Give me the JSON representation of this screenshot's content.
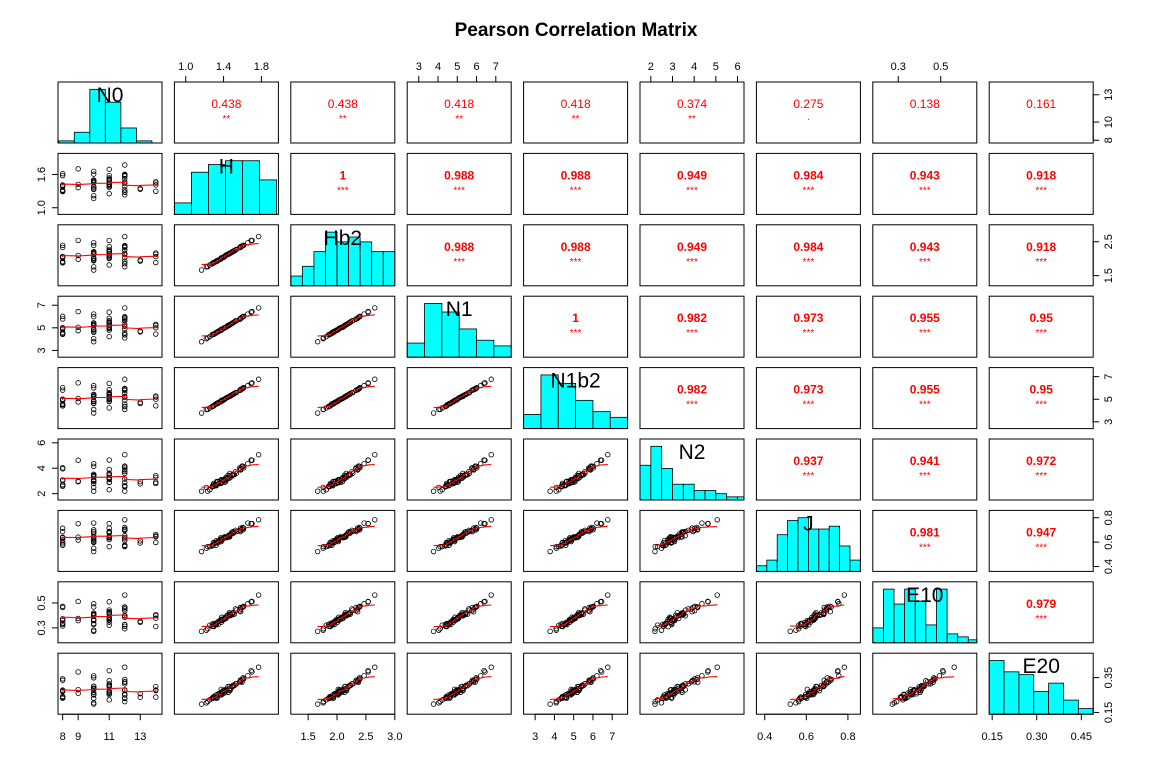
{
  "chart_data": {
    "type": "scatter-matrix",
    "title": "Pearson Correlation Matrix",
    "colors": {
      "hist": "#00ffff",
      "smooth": "#ff0000",
      "points": "#000000",
      "text": "#ff0000"
    },
    "variables": [
      "N0",
      "H",
      "Hb2",
      "N1",
      "N1b2",
      "N2",
      "J",
      "E10",
      "E20"
    ],
    "ranges": [
      [
        7.7,
        14.4
      ],
      [
        0.88,
        1.98
      ],
      [
        1.2,
        3.0
      ],
      [
        2.4,
        7.8
      ],
      [
        2.4,
        7.8
      ],
      [
        1.5,
        6.3
      ],
      [
        0.36,
        0.86
      ],
      [
        0.18,
        0.67
      ],
      [
        0.14,
        0.49
      ]
    ],
    "axis_ticks": {
      "top": [
        {
          "var": 1,
          "ticks": [
            1.0,
            1.4,
            1.8
          ],
          "labels": [
            "1.0",
            "1.4",
            "1.8"
          ]
        },
        {
          "var": 3,
          "ticks": [
            3,
            4,
            5,
            6,
            7
          ],
          "labels": [
            "3",
            "4",
            "5",
            "6",
            "7"
          ]
        },
        {
          "var": 5,
          "ticks": [
            2,
            3,
            4,
            5,
            6
          ],
          "labels": [
            "2",
            "3",
            "4",
            "5",
            "6"
          ]
        },
        {
          "var": 7,
          "ticks": [
            0.3,
            0.5
          ],
          "labels": [
            "0.3",
            "0.5"
          ]
        }
      ],
      "bottom": [
        {
          "var": 0,
          "ticks": [
            8,
            9,
            11,
            13
          ],
          "labels": [
            "8",
            "9",
            "11",
            "13"
          ]
        },
        {
          "var": 2,
          "ticks": [
            1.5,
            2.0,
            2.5,
            3.0
          ],
          "labels": [
            "1.5",
            "2.0",
            "2.5",
            "3.0"
          ]
        },
        {
          "var": 4,
          "ticks": [
            3,
            4,
            5,
            6,
            7
          ],
          "labels": [
            "3",
            "4",
            "5",
            "6",
            "7"
          ]
        },
        {
          "var": 6,
          "ticks": [
            0.4,
            0.6,
            0.8
          ],
          "labels": [
            "0.4",
            "0.6",
            "0.8"
          ]
        },
        {
          "var": 8,
          "ticks": [
            0.15,
            0.3,
            0.45
          ],
          "labels": [
            "0.15",
            "0.30",
            "0.45"
          ]
        }
      ],
      "left": [
        {
          "var": 1,
          "ticks": [
            1.0,
            1.6
          ],
          "labels": [
            "1.0",
            "1.6"
          ]
        },
        {
          "var": 3,
          "ticks": [
            3,
            5,
            7
          ],
          "labels": [
            "3",
            "5",
            "7"
          ]
        },
        {
          "var": 5,
          "ticks": [
            2,
            4,
            6
          ],
          "labels": [
            "2",
            "4",
            "6"
          ]
        },
        {
          "var": 7,
          "ticks": [
            0.3,
            0.5
          ],
          "labels": [
            "0.3",
            "0.5"
          ]
        }
      ],
      "right": [
        {
          "var": 0,
          "ticks": [
            8,
            10,
            13
          ],
          "labels": [
            "8",
            "10",
            "13"
          ]
        },
        {
          "var": 2,
          "ticks": [
            1.5,
            2.5
          ],
          "labels": [
            "1.5",
            "2.5"
          ]
        },
        {
          "var": 4,
          "ticks": [
            3,
            5,
            7
          ],
          "labels": [
            "3",
            "5",
            "7"
          ]
        },
        {
          "var": 6,
          "ticks": [
            0.4,
            0.6,
            0.8
          ],
          "labels": [
            "0.4",
            "0.6",
            "0.8"
          ]
        },
        {
          "var": 8,
          "ticks": [
            0.15,
            0.35
          ],
          "labels": [
            "0.15",
            "0.35"
          ]
        }
      ]
    },
    "correlations": [
      [
        "",
        "0.438",
        "0.438",
        "0.418",
        "0.418",
        "0.374",
        "0.275",
        "0.138",
        "0.161"
      ],
      [
        "",
        "",
        "1",
        "0.988",
        "0.988",
        "0.949",
        "0.984",
        "0.943",
        "0.918"
      ],
      [
        "",
        "",
        "",
        "0.988",
        "0.988",
        "0.949",
        "0.984",
        "0.943",
        "0.918"
      ],
      [
        "",
        "",
        "",
        "",
        "1",
        "0.982",
        "0.973",
        "0.955",
        "0.95"
      ],
      [
        "",
        "",
        "",
        "",
        "",
        "0.982",
        "0.973",
        "0.955",
        "0.95"
      ],
      [
        "",
        "",
        "",
        "",
        "",
        "",
        "0.937",
        "0.941",
        "0.972"
      ],
      [
        "",
        "",
        "",
        "",
        "",
        "",
        "",
        "0.981",
        "0.947"
      ],
      [
        "",
        "",
        "",
        "",
        "",
        "",
        "",
        "",
        "0.979"
      ],
      [
        "",
        "",
        "",
        "",
        "",
        "",
        "",
        "",
        ""
      ]
    ],
    "significance": [
      [
        "",
        "**",
        "**",
        "**",
        "**",
        "**",
        ".",
        "",
        ""
      ],
      [
        "",
        "",
        "***",
        "***",
        "***",
        "***",
        "***",
        "***",
        "***"
      ],
      [
        "",
        "",
        "",
        "***",
        "***",
        "***",
        "***",
        "***",
        "***"
      ],
      [
        "",
        "",
        "",
        "",
        "***",
        "***",
        "***",
        "***",
        "***"
      ],
      [
        "",
        "",
        "",
        "",
        "",
        "***",
        "***",
        "***",
        "***"
      ],
      [
        "",
        "",
        "",
        "",
        "",
        "",
        "***",
        "***",
        "***"
      ],
      [
        "",
        "",
        "",
        "",
        "",
        "",
        "",
        "***",
        "***"
      ],
      [
        "",
        "",
        "",
        "",
        "",
        "",
        "",
        "",
        "***"
      ],
      [
        "",
        "",
        "",
        "",
        "",
        "",
        "",
        "",
        ""
      ]
    ],
    "histograms": [
      {
        "var": "N0",
        "breaks": [
          7.75,
          8.75,
          9.75,
          10.75,
          11.75,
          12.75,
          13.75,
          14.4
        ],
        "counts": [
          1,
          5,
          25,
          19,
          7,
          1,
          0
        ]
      },
      {
        "var": "H",
        "breaks": [
          0.88,
          1.06,
          1.24,
          1.42,
          1.6,
          1.78,
          1.96
        ],
        "counts": [
          3,
          11,
          13,
          14,
          14,
          9
        ]
      },
      {
        "var": "Hb2",
        "breaks": [
          1.2,
          1.4,
          1.6,
          1.8,
          2.0,
          2.2,
          2.4,
          2.6,
          2.8,
          3.0
        ],
        "counts": [
          2,
          4,
          7,
          11,
          9,
          10,
          9,
          7,
          7
        ]
      },
      {
        "var": "N1",
        "breaks": [
          2.4,
          3.3,
          4.2,
          5.1,
          6.0,
          6.9,
          7.8
        ],
        "counts": [
          5,
          19,
          16,
          10,
          6,
          4
        ]
      },
      {
        "var": "N1b2",
        "breaks": [
          2.4,
          3.3,
          4.2,
          5.1,
          6.0,
          6.9,
          7.8
        ],
        "counts": [
          5,
          19,
          16,
          10,
          6,
          4
        ]
      },
      {
        "var": "N2",
        "breaks": [
          1.5,
          2.0,
          2.5,
          3.0,
          3.5,
          4.0,
          4.5,
          5.0,
          5.5,
          6.0,
          6.3
        ],
        "counts": [
          11,
          17,
          10,
          5,
          5,
          3,
          3,
          2,
          1,
          1
        ]
      },
      {
        "var": "J",
        "breaks": [
          0.36,
          0.41,
          0.46,
          0.51,
          0.56,
          0.61,
          0.66,
          0.71,
          0.76,
          0.81,
          0.86
        ],
        "counts": [
          2,
          4,
          13,
          18,
          19,
          15,
          15,
          16,
          9,
          4
        ]
      },
      {
        "var": "E10",
        "breaks": [
          0.18,
          0.23,
          0.28,
          0.33,
          0.38,
          0.43,
          0.48,
          0.53,
          0.58,
          0.63,
          0.67
        ],
        "counts": [
          5,
          18,
          13,
          18,
          14,
          6,
          18,
          3,
          2,
          1
        ]
      },
      {
        "var": "E20",
        "breaks": [
          0.14,
          0.19,
          0.24,
          0.29,
          0.34,
          0.39,
          0.44,
          0.49
        ],
        "counts": [
          19,
          15,
          14,
          8,
          11,
          5,
          2
        ]
      }
    ]
  }
}
